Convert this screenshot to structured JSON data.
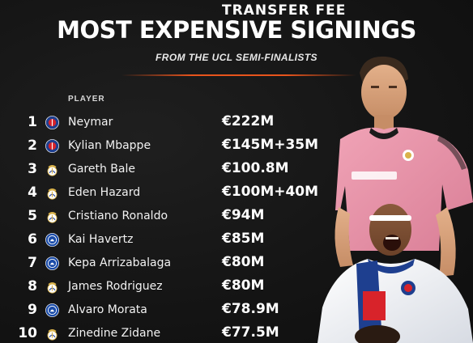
{
  "header": {
    "title": "MOST EXPENSIVE SIGNINGS",
    "subtitle": "FROM THE UCL SEMI-FINALISTS"
  },
  "columns": {
    "player": "PLAYER",
    "fee": "TRANSFER FEE"
  },
  "colors": {
    "accent": "#e8541c",
    "psg_blue": "#1e3f8f",
    "psg_red": "#d8232a",
    "real_gold": "#d9b24a",
    "chelsea_blue": "#1b4ca8"
  },
  "rows": [
    {
      "rank": "1",
      "club_icon": "psg-crest-icon",
      "name": "Neymar",
      "fee": "€222M"
    },
    {
      "rank": "2",
      "club_icon": "psg-crest-icon",
      "name": "Kylian Mbappe",
      "fee": "€145M+35M"
    },
    {
      "rank": "3",
      "club_icon": "real-madrid-crest-icon",
      "name": "Gareth Bale",
      "fee": "€100.8M"
    },
    {
      "rank": "4",
      "club_icon": "real-madrid-crest-icon",
      "name": "Eden Hazard",
      "fee": "€100M+40M"
    },
    {
      "rank": "5",
      "club_icon": "real-madrid-crest-icon",
      "name": "Cristiano Ronaldo",
      "fee": "€94M"
    },
    {
      "rank": "6",
      "club_icon": "chelsea-crest-icon",
      "name": "Kai Havertz",
      "fee": "€85M"
    },
    {
      "rank": "7",
      "club_icon": "chelsea-crest-icon",
      "name": "Kepa Arrizabalaga",
      "fee": "€80M"
    },
    {
      "rank": "8",
      "club_icon": "real-madrid-crest-icon",
      "name": "James Rodriguez",
      "fee": "€80M"
    },
    {
      "rank": "9",
      "club_icon": "chelsea-crest-icon",
      "name": "Alvaro Morata",
      "fee": "€78.9M"
    },
    {
      "rank": "10",
      "club_icon": "real-madrid-crest-icon",
      "name": "Zinedine Zidane",
      "fee": "€77.5M"
    }
  ]
}
